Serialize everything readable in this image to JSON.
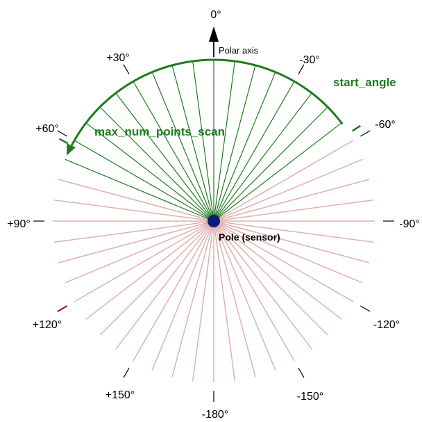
{
  "diagram": {
    "angle_labels": [
      {
        "deg": 0,
        "text": "0°"
      },
      {
        "deg": 30,
        "text": "-30°"
      },
      {
        "deg": 60,
        "text": "-60°"
      },
      {
        "deg": 90,
        "text": "-90°"
      },
      {
        "deg": 120,
        "text": "-120°"
      },
      {
        "deg": 150,
        "text": "-150°"
      },
      {
        "deg": 180,
        "text": "-180°"
      },
      {
        "deg": -150,
        "text": "+150°"
      },
      {
        "deg": -120,
        "text": "+120°"
      },
      {
        "deg": -90,
        "text": "+90°"
      },
      {
        "deg": -60,
        "text": "+60°"
      },
      {
        "deg": -30,
        "text": "+30°"
      }
    ],
    "polar_axis_label": "Polar axis",
    "pole_label": "Pole (sensor)",
    "start_angle_label": "start_angle",
    "max_points_label": "max_num_points_scan",
    "colors": {
      "green": "#1e7b1e",
      "pink": "#e0b0b0",
      "navy": "#0a1a78",
      "dark_red": "#a01010",
      "black": "#000000"
    }
  }
}
